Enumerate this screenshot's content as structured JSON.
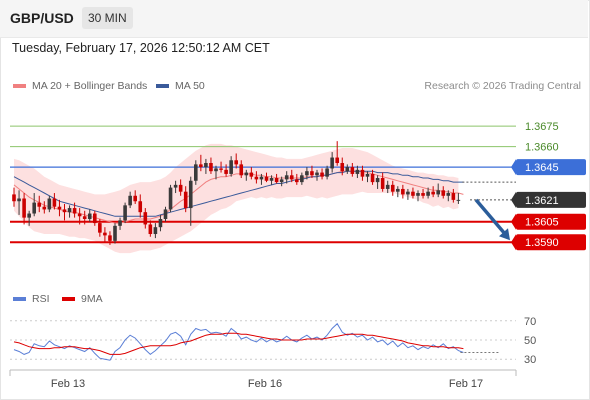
{
  "header": {
    "symbol": "GBP/USD",
    "interval": "30 MIN"
  },
  "timestamp": "Tuesday, February 17, 2026 12:50:12 AM CET",
  "legend": {
    "ma20_label": "MA 20 + Bollinger Bands",
    "ma50_label": "MA 50",
    "rsi_label": "RSI",
    "ma9_label": "9MA"
  },
  "copyright": "Research © 2026 Trading Central",
  "colors": {
    "bull": "#3a3a3a",
    "bear": "#cc0000",
    "ma20": "#f08080",
    "bollinger_fill": "#fde0e0",
    "ma50": "#3a5a9a",
    "resistance": "#8cc46a",
    "pivot": "#3c6fd8",
    "support": "#dd0000",
    "current": "#333333",
    "arrow": "#2b5d9a",
    "rsi": "#5b7fd6",
    "rsi_ma": "#dd0000"
  },
  "chart_data": [
    {
      "type": "candlestick",
      "ylim": [
        1.3555,
        1.37
      ],
      "y_ticks": [
        "1.3675",
        "1.3660"
      ],
      "x_ticks": [
        "Feb 13",
        "Feb 16",
        "Feb 17"
      ],
      "levels": [
        {
          "value": "1.3675",
          "role": "resistance"
        },
        {
          "value": "1.3660",
          "role": "resistance"
        },
        {
          "value": "1.3645",
          "role": "pivot"
        },
        {
          "value": "1.3621",
          "role": "current"
        },
        {
          "value": "1.3605",
          "role": "support"
        },
        {
          "value": "1.3590",
          "role": "support"
        }
      ],
      "candles": [
        [
          1.3625,
          1.363,
          1.3616,
          1.362
        ],
        [
          1.362,
          1.3628,
          1.361,
          1.3622
        ],
        [
          1.3622,
          1.3626,
          1.3603,
          1.3608
        ],
        [
          1.3608,
          1.3613,
          1.3602,
          1.3611
        ],
        [
          1.3611,
          1.3626,
          1.3609,
          1.3619
        ],
        [
          1.3619,
          1.3624,
          1.3612,
          1.3616
        ],
        [
          1.3616,
          1.362,
          1.3611,
          1.3614
        ],
        [
          1.3614,
          1.3624,
          1.3612,
          1.3622
        ],
        [
          1.3622,
          1.3626,
          1.3614,
          1.3616
        ],
        [
          1.3616,
          1.3621,
          1.3609,
          1.3614
        ],
        [
          1.3614,
          1.3618,
          1.3606,
          1.3612
        ],
        [
          1.3612,
          1.3617,
          1.3608,
          1.3615
        ],
        [
          1.3615,
          1.3619,
          1.3608,
          1.3611
        ],
        [
          1.3611,
          1.3615,
          1.3603,
          1.3609
        ],
        [
          1.3609,
          1.3613,
          1.3603,
          1.3607
        ],
        [
          1.3607,
          1.3614,
          1.3605,
          1.3611
        ],
        [
          1.3611,
          1.3613,
          1.3602,
          1.3604
        ],
        [
          1.3604,
          1.3607,
          1.3594,
          1.3597
        ],
        [
          1.3597,
          1.3601,
          1.359,
          1.3595
        ],
        [
          1.3595,
          1.3598,
          1.3588,
          1.3591
        ],
        [
          1.3591,
          1.3604,
          1.3589,
          1.3602
        ],
        [
          1.3602,
          1.3608,
          1.3599,
          1.3606
        ],
        [
          1.3606,
          1.3619,
          1.3604,
          1.3617
        ],
        [
          1.3617,
          1.3627,
          1.3615,
          1.3624
        ],
        [
          1.3624,
          1.3628,
          1.3618,
          1.362
        ],
        [
          1.362,
          1.3625,
          1.3608,
          1.3612
        ],
        [
          1.3612,
          1.3615,
          1.36,
          1.3603
        ],
        [
          1.3603,
          1.3606,
          1.3594,
          1.3596
        ],
        [
          1.3596,
          1.3604,
          1.3593,
          1.3601
        ],
        [
          1.3601,
          1.361,
          1.3598,
          1.3607
        ],
        [
          1.3607,
          1.3616,
          1.3605,
          1.3614
        ],
        [
          1.3614,
          1.3632,
          1.3612,
          1.363
        ],
        [
          1.363,
          1.3635,
          1.3626,
          1.3632
        ],
        [
          1.3632,
          1.3636,
          1.3624,
          1.3627
        ],
        [
          1.3627,
          1.3631,
          1.3612,
          1.3615
        ],
        [
          1.3615,
          1.3638,
          1.3602,
          1.3635
        ],
        [
          1.3635,
          1.365,
          1.3632,
          1.3647
        ],
        [
          1.3647,
          1.3654,
          1.3642,
          1.3645
        ],
        [
          1.3645,
          1.3651,
          1.364,
          1.3648
        ],
        [
          1.3648,
          1.3652,
          1.364,
          1.3642
        ],
        [
          1.3642,
          1.3646,
          1.3636,
          1.3644
        ],
        [
          1.3644,
          1.3649,
          1.3641,
          1.3643
        ],
        [
          1.3643,
          1.3647,
          1.3638,
          1.364
        ],
        [
          1.364,
          1.3653,
          1.3638,
          1.365
        ],
        [
          1.365,
          1.3655,
          1.3644,
          1.3647
        ],
        [
          1.3647,
          1.365,
          1.3637,
          1.3639
        ],
        [
          1.3639,
          1.3643,
          1.3635,
          1.3641
        ],
        [
          1.3641,
          1.3645,
          1.3636,
          1.3638
        ],
        [
          1.3638,
          1.3642,
          1.3633,
          1.3636
        ],
        [
          1.3636,
          1.364,
          1.3632,
          1.3638
        ],
        [
          1.3638,
          1.3641,
          1.3634,
          1.3635
        ],
        [
          1.3635,
          1.3639,
          1.3632,
          1.3637
        ],
        [
          1.3637,
          1.364,
          1.3633,
          1.3634
        ],
        [
          1.3634,
          1.3638,
          1.3631,
          1.3636
        ],
        [
          1.3636,
          1.3642,
          1.3633,
          1.3639
        ],
        [
          1.3639,
          1.3643,
          1.3634,
          1.3636
        ],
        [
          1.3636,
          1.364,
          1.3632,
          1.3634
        ],
        [
          1.3634,
          1.3641,
          1.3632,
          1.3639
        ],
        [
          1.3639,
          1.3645,
          1.3636,
          1.3642
        ],
        [
          1.3642,
          1.3646,
          1.3637,
          1.3639
        ],
        [
          1.3639,
          1.3643,
          1.3635,
          1.3641
        ],
        [
          1.3641,
          1.3644,
          1.3636,
          1.3638
        ],
        [
          1.3638,
          1.3646,
          1.3636,
          1.3644
        ],
        [
          1.3644,
          1.3656,
          1.3641,
          1.3652
        ],
        [
          1.3652,
          1.3664,
          1.3646,
          1.3648
        ],
        [
          1.3648,
          1.3652,
          1.3639,
          1.3642
        ],
        [
          1.3642,
          1.3647,
          1.364,
          1.3645
        ],
        [
          1.3645,
          1.3648,
          1.3638,
          1.364
        ],
        [
          1.364,
          1.3646,
          1.3637,
          1.3643
        ],
        [
          1.3643,
          1.3646,
          1.3635,
          1.3638
        ],
        [
          1.3638,
          1.3642,
          1.3634,
          1.364
        ],
        [
          1.364,
          1.3643,
          1.3632,
          1.3634
        ],
        [
          1.3634,
          1.3639,
          1.3629,
          1.3637
        ],
        [
          1.3637,
          1.3641,
          1.3627,
          1.3629
        ],
        [
          1.3629,
          1.3635,
          1.3626,
          1.3632
        ],
        [
          1.3632,
          1.3635,
          1.3624,
          1.3627
        ],
        [
          1.3627,
          1.3631,
          1.3623,
          1.3629
        ],
        [
          1.3629,
          1.3632,
          1.3622,
          1.3625
        ],
        [
          1.3625,
          1.3629,
          1.3621,
          1.3627
        ],
        [
          1.3627,
          1.363,
          1.3622,
          1.3624
        ],
        [
          1.3624,
          1.3628,
          1.362,
          1.3626
        ],
        [
          1.3626,
          1.3629,
          1.3622,
          1.3624
        ],
        [
          1.3624,
          1.363,
          1.3622,
          1.3627
        ],
        [
          1.3627,
          1.3631,
          1.3623,
          1.3625
        ],
        [
          1.3625,
          1.3633,
          1.3623,
          1.3628
        ],
        [
          1.3628,
          1.3631,
          1.3622,
          1.3624
        ],
        [
          1.3624,
          1.3628,
          1.362,
          1.3626
        ],
        [
          1.3626,
          1.3629,
          1.3619,
          1.3621
        ],
        [
          1.3621,
          1.3626,
          1.3618,
          1.3621
        ]
      ],
      "ma20": [
        1.3632,
        1.3629,
        1.3626,
        1.3623,
        1.3621,
        1.3619,
        1.3617,
        1.3616,
        1.3615,
        1.3614,
        1.3613,
        1.3612,
        1.3612,
        1.3611,
        1.361,
        1.3609,
        1.3608,
        1.3607,
        1.3606,
        1.3605,
        1.3604,
        1.3604,
        1.3605,
        1.3606,
        1.3607,
        1.3607,
        1.3607,
        1.3607,
        1.3608,
        1.3609,
        1.3611,
        1.3614,
        1.3617,
        1.362,
        1.3622,
        1.3625,
        1.3628,
        1.3631,
        1.3634,
        1.3636,
        1.3637,
        1.3638,
        1.3638,
        1.3639,
        1.364,
        1.364,
        1.364,
        1.364,
        1.3639,
        1.3639,
        1.3638,
        1.3638,
        1.3637,
        1.3637,
        1.3637,
        1.3637,
        1.3637,
        1.3637,
        1.3638,
        1.3638,
        1.3638,
        1.3639,
        1.3639,
        1.364,
        1.3641,
        1.3642,
        1.3642,
        1.3642,
        1.3642,
        1.3642,
        1.3641,
        1.364,
        1.3639,
        1.3638,
        1.3637,
        1.3636,
        1.3635,
        1.3634,
        1.3633,
        1.3632,
        1.3631,
        1.363,
        1.3629,
        1.3628,
        1.3628,
        1.3627,
        1.3627,
        1.3626,
        1.3626,
        1.3625
      ],
      "bollinger_upper": [
        1.3651,
        1.365,
        1.3648,
        1.3646,
        1.3644,
        1.3641,
        1.3638,
        1.3636,
        1.3634,
        1.3632,
        1.3631,
        1.363,
        1.3629,
        1.3628,
        1.3627,
        1.3626,
        1.3625,
        1.3625,
        1.3625,
        1.3626,
        1.3627,
        1.3628,
        1.363,
        1.3632,
        1.3633,
        1.3634,
        1.3634,
        1.3634,
        1.3635,
        1.3636,
        1.3638,
        1.3641,
        1.3645,
        1.3648,
        1.3651,
        1.3654,
        1.3657,
        1.3659,
        1.3661,
        1.3662,
        1.3662,
        1.3662,
        1.3661,
        1.3661,
        1.366,
        1.3659,
        1.3658,
        1.3657,
        1.3656,
        1.3655,
        1.3654,
        1.3653,
        1.3652,
        1.3652,
        1.3651,
        1.3651,
        1.3651,
        1.3651,
        1.3652,
        1.3653,
        1.3654,
        1.3655,
        1.3656,
        1.3657,
        1.3658,
        1.3659,
        1.3659,
        1.3659,
        1.3658,
        1.3657,
        1.3656,
        1.3654,
        1.3652,
        1.365,
        1.3648,
        1.3646,
        1.3645,
        1.3644,
        1.3643,
        1.3642,
        1.3641,
        1.3641,
        1.364,
        1.364,
        1.3639,
        1.3639,
        1.3638,
        1.3638,
        1.3637,
        1.3637
      ],
      "bollinger_lower": [
        1.3613,
        1.3609,
        1.3605,
        1.3601,
        1.3598,
        1.3597,
        1.3596,
        1.3596,
        1.3596,
        1.3596,
        1.3595,
        1.3594,
        1.3594,
        1.3593,
        1.3593,
        1.3592,
        1.3591,
        1.3589,
        1.3587,
        1.3585,
        1.3583,
        1.3582,
        1.3582,
        1.3582,
        1.3583,
        1.3584,
        1.3584,
        1.3584,
        1.3585,
        1.3586,
        1.3588,
        1.359,
        1.3592,
        1.3594,
        1.3596,
        1.3598,
        1.3601,
        1.3604,
        1.3607,
        1.361,
        1.3612,
        1.3614,
        1.3615,
        1.3617,
        1.362,
        1.3621,
        1.3622,
        1.3623,
        1.3622,
        1.3623,
        1.3622,
        1.3623,
        1.3622,
        1.3622,
        1.3623,
        1.3623,
        1.3623,
        1.3623,
        1.3624,
        1.3623,
        1.3622,
        1.3623,
        1.3622,
        1.3623,
        1.3624,
        1.3625,
        1.3625,
        1.3625,
        1.3626,
        1.3627,
        1.3626,
        1.3626,
        1.3626,
        1.3626,
        1.3626,
        1.3626,
        1.3625,
        1.3624,
        1.3623,
        1.3622,
        1.3621,
        1.3619,
        1.3618,
        1.3616,
        1.3617,
        1.3615,
        1.3616,
        1.3614,
        1.3615,
        1.3613
      ],
      "ma50": [
        1.3638,
        1.3636,
        1.3634,
        1.3632,
        1.363,
        1.3628,
        1.3626,
        1.3624,
        1.3622,
        1.362,
        1.3619,
        1.3618,
        1.3617,
        1.3616,
        1.3615,
        1.3614,
        1.3613,
        1.3612,
        1.3611,
        1.361,
        1.3609,
        1.3609,
        1.3609,
        1.3609,
        1.3609,
        1.3609,
        1.3609,
        1.3609,
        1.3609,
        1.361,
        1.3611,
        1.3612,
        1.3613,
        1.3614,
        1.3615,
        1.3616,
        1.3617,
        1.3618,
        1.3619,
        1.362,
        1.3621,
        1.3622,
        1.3623,
        1.3624,
        1.3625,
        1.3626,
        1.3627,
        1.3628,
        1.3629,
        1.363,
        1.3631,
        1.3632,
        1.3633,
        1.3633,
        1.3634,
        1.3635,
        1.3636,
        1.3636,
        1.3637,
        1.3638,
        1.3638,
        1.3639,
        1.3639,
        1.364,
        1.3641,
        1.3641,
        1.3642,
        1.3642,
        1.3642,
        1.3642,
        1.3642,
        1.3642,
        1.3641,
        1.3641,
        1.3641,
        1.364,
        1.364,
        1.3639,
        1.3639,
        1.3638,
        1.3638,
        1.3637,
        1.3637,
        1.3636,
        1.3636,
        1.3635,
        1.3635,
        1.3634,
        1.3634,
        1.3634
      ],
      "forecast": {
        "from": 1.3621,
        "to": 1.359,
        "direction": "down"
      }
    },
    {
      "type": "line",
      "ylim": [
        25,
        75
      ],
      "y_ticks": [
        "70",
        "50",
        "30"
      ],
      "series": [
        {
          "name": "RSI",
          "values": [
            40,
            38,
            35,
            37,
            46,
            44,
            43,
            49,
            45,
            43,
            41,
            44,
            42,
            40,
            38,
            42,
            36,
            31,
            30,
            29,
            38,
            42,
            50,
            55,
            52,
            46,
            40,
            35,
            39,
            44,
            49,
            56,
            58,
            54,
            45,
            56,
            62,
            60,
            61,
            57,
            58,
            57,
            54,
            62,
            58,
            51,
            53,
            50,
            48,
            52,
            48,
            51,
            48,
            50,
            54,
            50,
            48,
            52,
            55,
            51,
            53,
            50,
            55,
            62,
            67,
            58,
            55,
            57,
            53,
            55,
            50,
            53,
            48,
            50,
            45,
            49,
            43,
            47,
            42,
            44,
            40,
            43,
            41,
            45,
            42,
            46,
            41,
            43,
            39,
            37
          ]
        },
        {
          "name": "9MA",
          "values": [
            48,
            47,
            45,
            43,
            42,
            41,
            41,
            41,
            42,
            42,
            43,
            43,
            43,
            42,
            41,
            41,
            40,
            39,
            37,
            35,
            35,
            35,
            36,
            38,
            40,
            42,
            43,
            44,
            44,
            44,
            44,
            44,
            45,
            47,
            48,
            49,
            51,
            53,
            55,
            56,
            56,
            56,
            57,
            57,
            57,
            56,
            56,
            55,
            54,
            53,
            52,
            51,
            51,
            50,
            50,
            50,
            50,
            50,
            51,
            51,
            51,
            51,
            52,
            53,
            54,
            55,
            56,
            56,
            56,
            56,
            55,
            55,
            54,
            53,
            52,
            51,
            50,
            49,
            47,
            46,
            45,
            44,
            44,
            43,
            43,
            43,
            42,
            42,
            42,
            41
          ]
        }
      ]
    }
  ]
}
